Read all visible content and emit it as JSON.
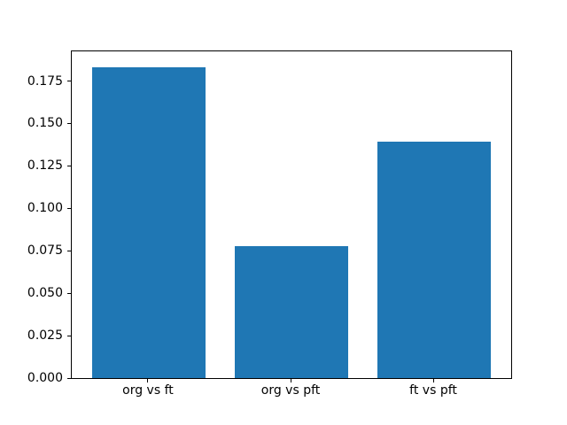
{
  "figure": {
    "background_color": "#ffffff",
    "plot_border_color": "#000000",
    "tick_color": "#000000",
    "tick_label_color": "#000000"
  },
  "chart_data": {
    "type": "bar",
    "title": "",
    "xlabel": "",
    "ylabel": "",
    "categories": [
      "org vs ft",
      "org vs pft",
      "ft vs pft"
    ],
    "values": [
      0.1833,
      0.0778,
      0.1394
    ],
    "bar_color": "#1f77b4",
    "bar_width_fraction": 0.8,
    "xlim": [
      -0.54,
      2.54
    ],
    "ylim": [
      0,
      0.1925
    ],
    "yticks": [
      0,
      0.025,
      0.05,
      0.075,
      0.1,
      0.125,
      0.15,
      0.175
    ],
    "ytick_labels": [
      "0.000",
      "0.025",
      "0.050",
      "0.075",
      "0.100",
      "0.125",
      "0.150",
      "0.175"
    ],
    "grid": false,
    "legend_position": "none"
  }
}
